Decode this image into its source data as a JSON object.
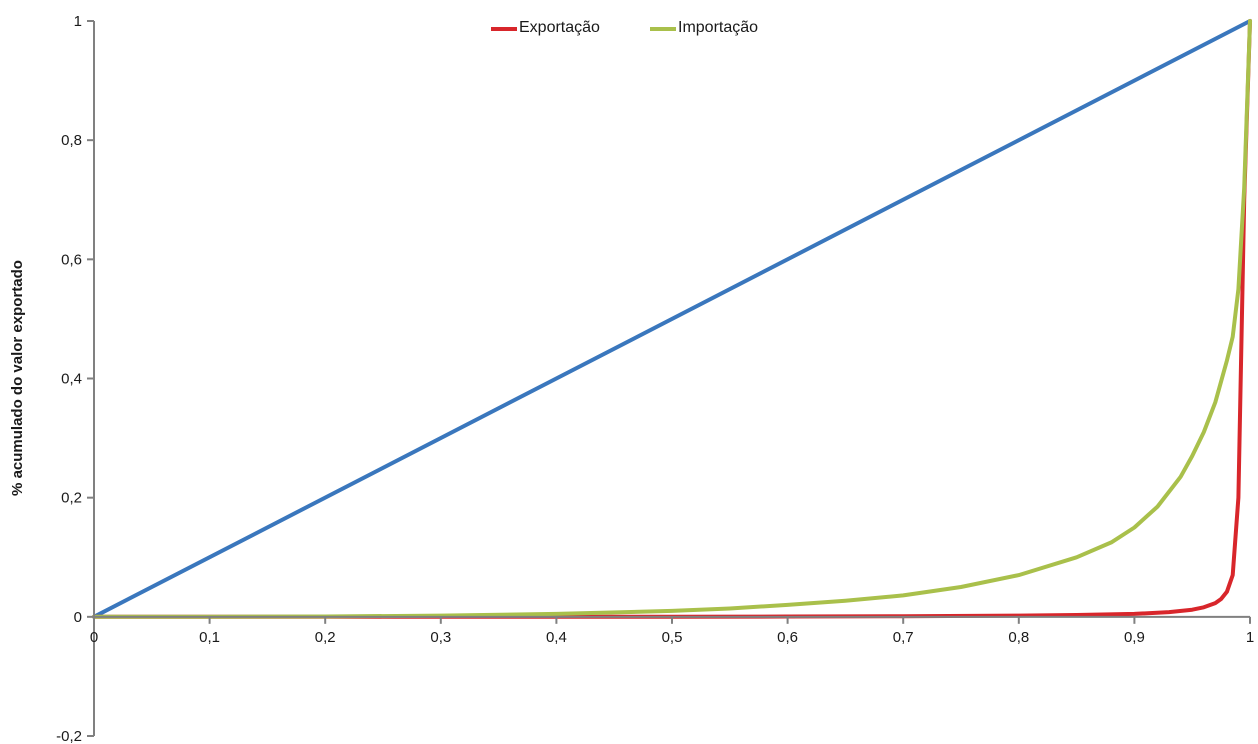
{
  "chart_data": {
    "type": "line",
    "title": "",
    "xlabel": "",
    "ylabel": "% acumulado do valor exportado",
    "xlim": [
      0,
      1
    ],
    "ylim": [
      -0.2,
      1
    ],
    "x_ticks": [
      "0",
      "0,1",
      "0,2",
      "0,3",
      "0,4",
      "0,5",
      "0,6",
      "0,7",
      "0,8",
      "0,9",
      "1"
    ],
    "y_ticks": [
      "-0,2",
      "0",
      "0,2",
      "0,4",
      "0,6",
      "0,8",
      "1"
    ],
    "grid": false,
    "legend_position": "top-center",
    "series": [
      {
        "color": "#3a77bd",
        "x": [
          0,
          1
        ],
        "y": [
          0,
          1
        ]
      },
      {
        "name": "Exportação",
        "color": "#d8262b",
        "x": [
          0,
          0.1,
          0.2,
          0.3,
          0.4,
          0.5,
          0.6,
          0.7,
          0.8,
          0.85,
          0.9,
          0.93,
          0.95,
          0.96,
          0.97,
          0.975,
          0.98,
          0.985,
          0.99,
          0.995,
          1
        ],
        "y": [
          0,
          0,
          0,
          0,
          0,
          0,
          0.0005,
          0.001,
          0.002,
          0.003,
          0.005,
          0.008,
          0.012,
          0.016,
          0.023,
          0.03,
          0.042,
          0.07,
          0.2,
          0.7,
          1
        ]
      },
      {
        "name": "Importação",
        "color": "#a9c04b",
        "x": [
          0,
          0.1,
          0.2,
          0.3,
          0.4,
          0.5,
          0.55,
          0.6,
          0.65,
          0.7,
          0.75,
          0.8,
          0.85,
          0.88,
          0.9,
          0.92,
          0.94,
          0.95,
          0.96,
          0.97,
          0.98,
          0.985,
          0.99,
          0.995,
          1
        ],
        "y": [
          0,
          0,
          0.0005,
          0.002,
          0.005,
          0.01,
          0.014,
          0.02,
          0.027,
          0.036,
          0.05,
          0.07,
          0.1,
          0.125,
          0.15,
          0.185,
          0.235,
          0.27,
          0.31,
          0.36,
          0.43,
          0.47,
          0.55,
          0.72,
          1
        ]
      }
    ]
  }
}
